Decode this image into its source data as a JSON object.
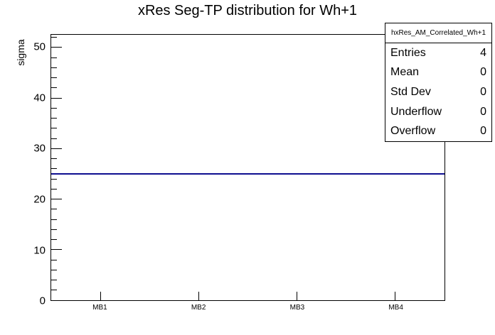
{
  "title": "xRes Seg-TP distribution for Wh+1",
  "colors": {
    "background": "#ffffff",
    "frame": "#000000",
    "text": "#000000",
    "histogram_line": "#0e0e90"
  },
  "stats_box": {
    "header": "hxRes_AM_Correlated_Wh+1",
    "rows": [
      {
        "label": "Entries",
        "value": "4"
      },
      {
        "label": "Mean",
        "value": "0"
      },
      {
        "label": "Std Dev",
        "value": "0"
      },
      {
        "label": "Underflow",
        "value": "0"
      },
      {
        "label": "Overflow",
        "value": "0"
      }
    ]
  },
  "chart_data": {
    "type": "line",
    "title": "xRes Seg-TP distribution for Wh+1",
    "categories": [
      "MB1",
      "MB2",
      "MB3",
      "MB4"
    ],
    "values": [
      25,
      25,
      25,
      25
    ],
    "xlabel": "",
    "ylabel": "sigma",
    "ylim": [
      0,
      52.5
    ],
    "y_major_ticks": [
      0,
      10,
      20,
      30,
      40,
      50
    ],
    "y_minor_step": 2,
    "grid": false,
    "legend_position": "none",
    "line_color": "#0e0e90"
  }
}
